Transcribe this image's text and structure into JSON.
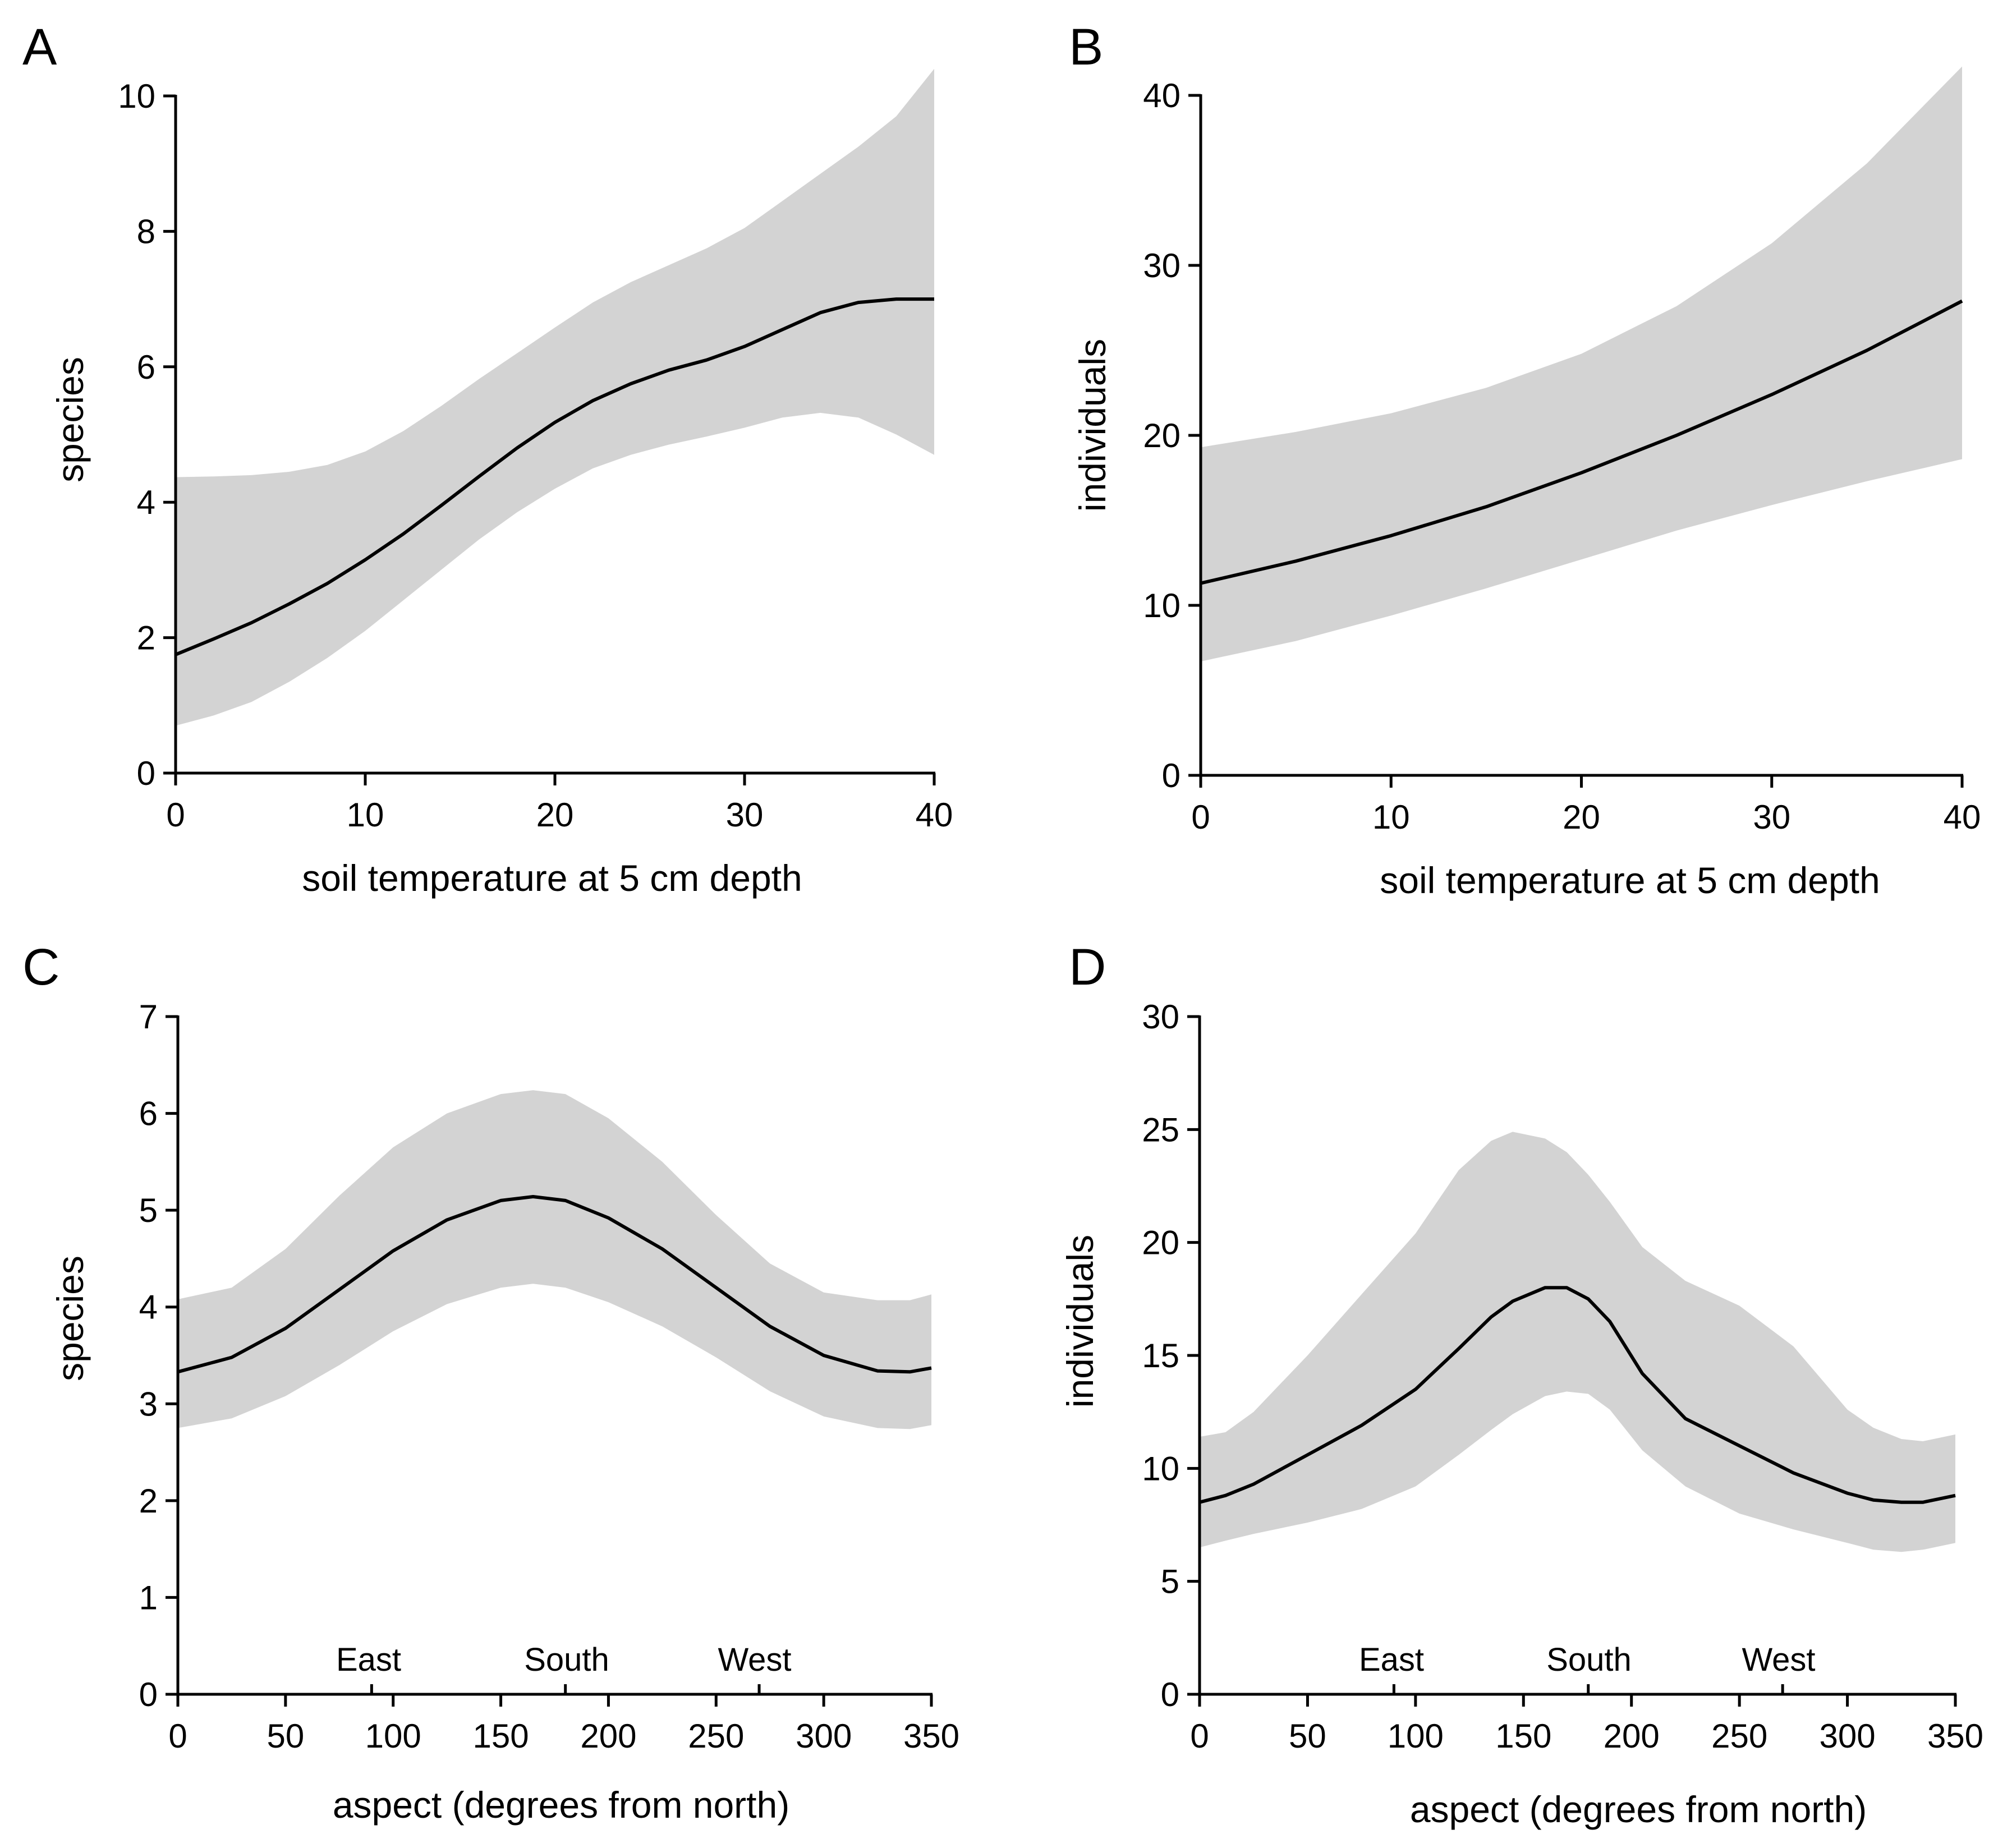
{
  "chart_data": [
    {
      "panel": "A",
      "type": "line",
      "xlabel": "soil temperature at 5 cm depth",
      "ylabel": "species",
      "xlim": [
        0,
        40
      ],
      "ylim": [
        0,
        10
      ],
      "xticks": [
        0,
        10,
        20,
        30,
        40
      ],
      "yticks": [
        0,
        2,
        4,
        6,
        8,
        10
      ],
      "x": [
        0,
        2,
        4,
        6,
        8,
        10,
        12,
        14,
        16,
        18,
        20,
        22,
        24,
        26,
        28,
        30,
        32,
        34,
        36,
        38,
        40
      ],
      "series": [
        {
          "name": "fit",
          "values": [
            1.75,
            1.98,
            2.22,
            2.5,
            2.8,
            3.15,
            3.53,
            3.95,
            4.38,
            4.8,
            5.18,
            5.5,
            5.75,
            5.95,
            6.1,
            6.3,
            6.55,
            6.8,
            6.95,
            7.0,
            7.0
          ]
        },
        {
          "name": "upper",
          "values": [
            4.37,
            4.38,
            4.4,
            4.45,
            4.55,
            4.75,
            5.05,
            5.42,
            5.82,
            6.2,
            6.58,
            6.95,
            7.25,
            7.5,
            7.75,
            8.05,
            8.45,
            8.85,
            9.25,
            9.7,
            10.4
          ]
        },
        {
          "name": "lower",
          "values": [
            0.7,
            0.85,
            1.05,
            1.35,
            1.7,
            2.1,
            2.55,
            3.0,
            3.45,
            3.85,
            4.2,
            4.5,
            4.7,
            4.85,
            4.97,
            5.1,
            5.25,
            5.32,
            5.25,
            5.0,
            4.7
          ]
        }
      ]
    },
    {
      "panel": "B",
      "type": "line",
      "xlabel": "soil temperature at 5 cm depth",
      "ylabel": "individuals",
      "xlim": [
        0,
        40
      ],
      "ylim": [
        0,
        40
      ],
      "xticks": [
        0,
        10,
        20,
        30,
        40
      ],
      "yticks": [
        0,
        10,
        20,
        30,
        40
      ],
      "x": [
        0,
        5,
        10,
        15,
        20,
        25,
        30,
        35,
        40
      ],
      "series": [
        {
          "name": "fit",
          "values": [
            11.3,
            12.6,
            14.1,
            15.8,
            17.8,
            20.0,
            22.4,
            25.0,
            27.9
          ]
        },
        {
          "name": "upper",
          "values": [
            19.3,
            20.2,
            21.3,
            22.8,
            24.8,
            27.6,
            31.3,
            36.0,
            41.7
          ]
        },
        {
          "name": "lower",
          "values": [
            6.7,
            7.9,
            9.4,
            11.0,
            12.7,
            14.4,
            15.9,
            17.3,
            18.6
          ]
        }
      ]
    },
    {
      "panel": "C",
      "type": "line",
      "xlabel": "aspect (degrees from north)",
      "ylabel": "species",
      "xlim": [
        0,
        350
      ],
      "ylim": [
        0,
        7
      ],
      "xticks": [
        0,
        50,
        100,
        150,
        200,
        250,
        300,
        350
      ],
      "yticks": [
        0,
        1,
        2,
        3,
        4,
        5,
        6,
        7
      ],
      "annotations": [
        {
          "label": "East",
          "x": 90
        },
        {
          "label": "South",
          "x": 180
        },
        {
          "label": "West",
          "x": 270
        }
      ],
      "x": [
        0,
        25,
        50,
        75,
        100,
        125,
        150,
        165,
        180,
        200,
        225,
        250,
        275,
        300,
        325,
        340,
        350
      ],
      "series": [
        {
          "name": "fit",
          "values": [
            3.33,
            3.48,
            3.78,
            4.18,
            4.58,
            4.9,
            5.1,
            5.14,
            5.1,
            4.92,
            4.6,
            4.2,
            3.8,
            3.5,
            3.34,
            3.33,
            3.37
          ]
        },
        {
          "name": "upper",
          "values": [
            4.08,
            4.2,
            4.6,
            5.15,
            5.65,
            6.0,
            6.2,
            6.24,
            6.2,
            5.95,
            5.5,
            4.95,
            4.45,
            4.15,
            4.07,
            4.07,
            4.13
          ]
        },
        {
          "name": "lower",
          "values": [
            2.75,
            2.85,
            3.08,
            3.4,
            3.75,
            4.03,
            4.2,
            4.24,
            4.2,
            4.05,
            3.8,
            3.48,
            3.13,
            2.87,
            2.75,
            2.74,
            2.78
          ]
        }
      ]
    },
    {
      "panel": "D",
      "type": "line",
      "xlabel": "aspect (degrees from north)",
      "ylabel": "individuals",
      "xlim": [
        0,
        350
      ],
      "ylim": [
        0,
        30
      ],
      "xticks": [
        0,
        50,
        100,
        150,
        200,
        250,
        300,
        350
      ],
      "yticks": [
        0,
        5,
        10,
        15,
        20,
        25,
        30
      ],
      "annotations": [
        {
          "label": "East",
          "x": 90
        },
        {
          "label": "South",
          "x": 180
        },
        {
          "label": "West",
          "x": 270
        }
      ],
      "x": [
        0,
        12,
        25,
        50,
        75,
        100,
        120,
        135,
        145,
        160,
        170,
        180,
        190,
        205,
        225,
        250,
        275,
        300,
        312,
        325,
        335,
        350
      ],
      "series": [
        {
          "name": "fit",
          "values": [
            8.5,
            8.8,
            9.3,
            10.6,
            11.9,
            13.5,
            15.3,
            16.7,
            17.4,
            18.0,
            18.0,
            17.5,
            16.5,
            14.2,
            12.2,
            11.0,
            9.8,
            8.9,
            8.6,
            8.5,
            8.5,
            8.8
          ]
        },
        {
          "name": "upper",
          "values": [
            11.4,
            11.6,
            12.5,
            15.0,
            17.7,
            20.4,
            23.2,
            24.5,
            24.9,
            24.6,
            24.0,
            23.0,
            21.8,
            19.8,
            18.3,
            17.2,
            15.4,
            12.6,
            11.8,
            11.3,
            11.2,
            11.5
          ]
        },
        {
          "name": "lower",
          "values": [
            6.5,
            6.8,
            7.1,
            7.6,
            8.2,
            9.2,
            10.6,
            11.7,
            12.4,
            13.2,
            13.4,
            13.3,
            12.6,
            10.8,
            9.2,
            8.0,
            7.3,
            6.7,
            6.4,
            6.3,
            6.4,
            6.7
          ]
        }
      ]
    }
  ]
}
